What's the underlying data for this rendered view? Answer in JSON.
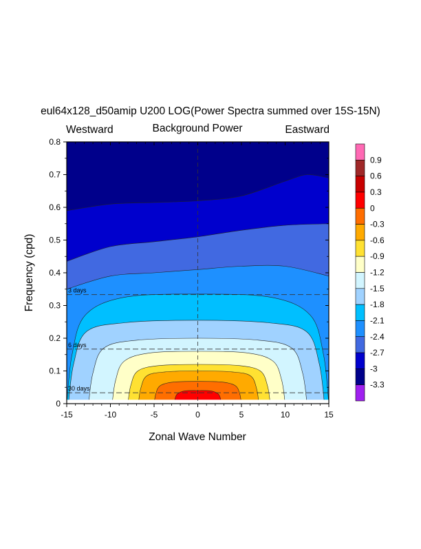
{
  "chart_data": {
    "type": "contour",
    "title": "eul64x128_d50amip U200 LOG(Power Spectra summed over 15S-15N)",
    "center_label": "Background Power",
    "left_label": "Westward",
    "right_label": "Eastward",
    "xlabel": "Zonal Wave Number",
    "ylabel": "Frequency (cpd)",
    "xlim": [
      -15,
      15
    ],
    "ylim": [
      0,
      0.8
    ],
    "x_ticks": [
      -15,
      -10,
      -5,
      0,
      5,
      10,
      15
    ],
    "x_tick_labels": [
      "-15",
      "-10",
      "-5",
      "0",
      "5",
      "10",
      "15"
    ],
    "y_ticks": [
      0,
      0.1,
      0.2,
      0.3,
      0.4,
      0.5,
      0.6,
      0.7,
      0.8
    ],
    "y_tick_labels": [
      "0",
      "0.1",
      "0.2",
      "0.3",
      "0.4",
      "0.5",
      "0.6",
      "0.7",
      "0.8"
    ],
    "period_lines": [
      {
        "label": "3 days",
        "freq": 0.3333
      },
      {
        "label": "6 days",
        "freq": 0.1667
      },
      {
        "label": "30 days",
        "freq": 0.0333
      }
    ],
    "colorbar": {
      "levels": [
        -3.3,
        -3,
        -2.7,
        -2.4,
        -2.1,
        -1.8,
        -1.5,
        -1.2,
        -0.9,
        -0.6,
        -0.3,
        0,
        0.3,
        0.6,
        0.9
      ],
      "labels": [
        "-3.3",
        "-3",
        "-2.7",
        "-2.4",
        "-2.1",
        "-1.8",
        "-1.5",
        "-1.2",
        "-0.9",
        "-0.6",
        "-0.3",
        "0",
        "0.3",
        "0.6",
        "0.9"
      ],
      "colors": [
        "#a020f0",
        "#00008b",
        "#0000cd",
        "#4169e1",
        "#1e90ff",
        "#00bfff",
        "#a0d2ff",
        "#d2f5ff",
        "#ffffc8",
        "#ffe132",
        "#ffaa00",
        "#ff6e00",
        "#ff0000",
        "#c80000",
        "#a02828",
        "#ff69b4"
      ]
    },
    "contour_boundaries": [
      {
        "level": -3.0,
        "freq_at_k": [
          [
            -15,
            0.59
          ],
          [
            -10,
            0.61
          ],
          [
            -5,
            0.615
          ],
          [
            0,
            0.62
          ],
          [
            5,
            0.635
          ],
          [
            10,
            0.68
          ],
          [
            12.5,
            0.7
          ],
          [
            15,
            0.69
          ]
        ]
      },
      {
        "level": -2.7,
        "freq_at_k": [
          [
            -15,
            0.435
          ],
          [
            -10,
            0.48
          ],
          [
            -5,
            0.495
          ],
          [
            0,
            0.51
          ],
          [
            5,
            0.53
          ],
          [
            10,
            0.545
          ],
          [
            15,
            0.55
          ]
        ]
      },
      {
        "level": -2.4,
        "freq_at_k": [
          [
            -15,
            0.35
          ],
          [
            -10,
            0.39
          ],
          [
            -5,
            0.4
          ],
          [
            0,
            0.41
          ],
          [
            5,
            0.42
          ],
          [
            10,
            0.42
          ],
          [
            15,
            0.39
          ]
        ]
      }
    ],
    "closed_contours": [
      {
        "level": -2.1,
        "k_left": -15,
        "k_right": 15,
        "top_freq": 0.335,
        "shoulder": 0.27
      },
      {
        "level": -1.8,
        "k_left": -14.8,
        "k_right": 14.5,
        "top_freq": 0.255,
        "shoulder": 0.22
      },
      {
        "level": -1.5,
        "k_left": -12.5,
        "k_right": 12.5,
        "top_freq": 0.2,
        "shoulder": 0.17
      },
      {
        "level": -1.2,
        "k_left": -9.8,
        "k_right": 10,
        "top_freq": 0.16,
        "shoulder": 0.13
      },
      {
        "level": -0.9,
        "k_left": -8,
        "k_right": 8.3,
        "top_freq": 0.12,
        "shoulder": 0.1
      },
      {
        "level": -0.6,
        "k_left": -6.8,
        "k_right": 7,
        "top_freq": 0.1,
        "shoulder": 0.085
      },
      {
        "level": -0.3,
        "k_left": -5,
        "k_right": 5,
        "top_freq": 0.068,
        "shoulder": 0.055
      },
      {
        "level": 0.0,
        "k_left": -2.7,
        "k_right": 2.7,
        "top_freq": 0.04,
        "shoulder": 0.03
      }
    ]
  }
}
